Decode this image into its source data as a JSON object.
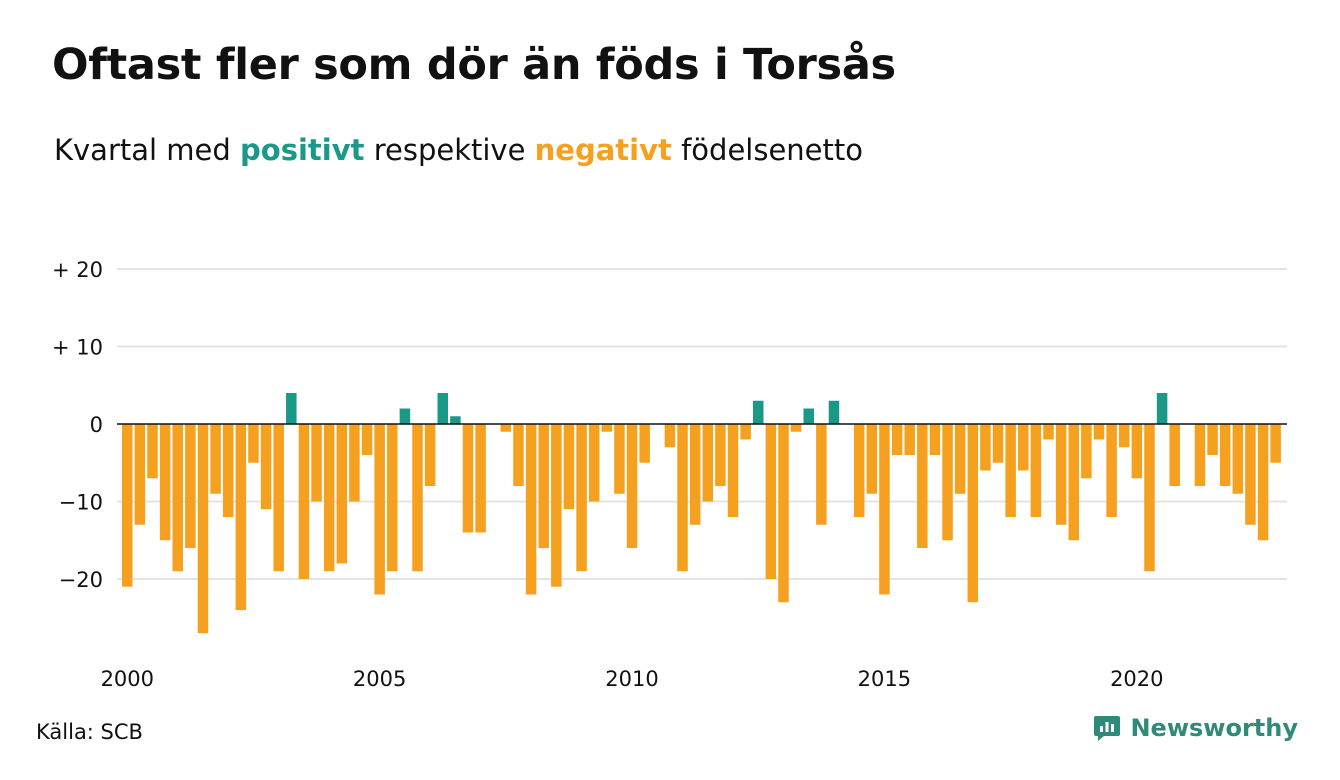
{
  "title": "Oftast fler som dör än föds i Torsås",
  "subtitle": {
    "pre": "Kvartal med ",
    "positive": "positivt",
    "mid": " respektive ",
    "negative": "negativt",
    "post": " födelsenetto"
  },
  "source": "Källa: SCB",
  "brand": {
    "name": "Newsworthy",
    "icon": "newsworthy-logo-icon"
  },
  "colors": {
    "positive": "#1a9988",
    "negative": "#f5a01f",
    "grid": "#e3e3e3",
    "baseline": "#111111"
  },
  "chart_data": {
    "type": "bar",
    "title": "Oftast fler som dör än föds i Torsås",
    "subtitle": "Kvartal med positivt respektive negativt födelsenetto",
    "xlabel": "",
    "ylabel": "",
    "x_start": 2000,
    "x_end": 2023,
    "periods_per_year": 4,
    "ylim": [
      -30,
      20
    ],
    "y_ticks": [
      {
        "value": 20,
        "label": "+ 20"
      },
      {
        "value": 10,
        "label": "+ 10"
      },
      {
        "value": 0,
        "label": "0"
      },
      {
        "value": -10,
        "label": "−10"
      },
      {
        "value": -20,
        "label": "−20"
      }
    ],
    "x_ticks": [
      {
        "value": 2000,
        "label": "2000"
      },
      {
        "value": 2005,
        "label": "2005"
      },
      {
        "value": 2010,
        "label": "2010"
      },
      {
        "value": 2015,
        "label": "2015"
      },
      {
        "value": 2020,
        "label": "2020"
      }
    ],
    "grid": true,
    "legend": "none",
    "values": [
      -21,
      -13,
      -7,
      -15,
      -19,
      -16,
      -27,
      -9,
      -12,
      -24,
      -5,
      -11,
      -19,
      4,
      -20,
      -10,
      -19,
      -18,
      -10,
      -4,
      -22,
      -19,
      2,
      -19,
      -8,
      4,
      1,
      -14,
      -14,
      0,
      -1,
      -8,
      -22,
      -16,
      -21,
      -11,
      -19,
      -10,
      -1,
      -9,
      -16,
      -5,
      0,
      -3,
      -19,
      -13,
      -10,
      -8,
      -12,
      -2,
      3,
      -20,
      -23,
      -1,
      2,
      -13,
      3,
      0,
      -12,
      -9,
      -22,
      -4,
      -4,
      -16,
      -4,
      -15,
      -9,
      -23,
      -6,
      -5,
      -12,
      -6,
      -12,
      -2,
      -13,
      -15,
      -7,
      -2,
      -12,
      -3,
      -7,
      -19,
      4,
      -8,
      0,
      -8,
      -4,
      -8,
      -9,
      -13,
      -15,
      -5
    ]
  }
}
